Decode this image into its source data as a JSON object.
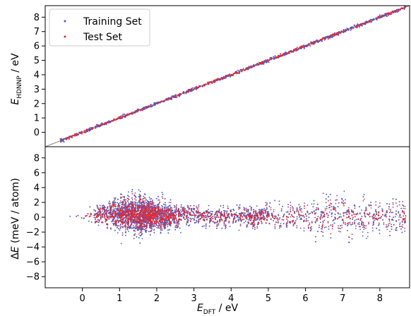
{
  "chart_data": [
    {
      "type": "scatter",
      "panel": "top",
      "xlabel": "",
      "ylabel": "E_HDNNP / eV",
      "ylabel_main": "E",
      "ylabel_sub": "HDNNP",
      "ylabel_unit": " / eV",
      "xlim": [
        -1.0,
        8.8
      ],
      "ylim": [
        -1.0,
        8.8
      ],
      "yticks": [
        0,
        1,
        2,
        3,
        4,
        5,
        6,
        7,
        8
      ],
      "grid": false,
      "legend_position": "top-left",
      "series": [
        {
          "name": "Training Set",
          "color": "#4a59c4",
          "x": [
            -0.6,
            0.0,
            1.0,
            2.0,
            3.0,
            4.0,
            5.0,
            6.0,
            7.0,
            8.0,
            8.7
          ],
          "y": [
            -0.6,
            0.0,
            1.0,
            2.0,
            3.0,
            4.0,
            5.0,
            6.0,
            7.0,
            8.0,
            8.7
          ]
        },
        {
          "name": "Test Set",
          "color": "#e8292f",
          "x": [
            -0.6,
            0.0,
            1.0,
            2.0,
            3.0,
            4.0,
            5.0,
            6.0,
            7.0,
            8.0,
            8.7
          ],
          "y": [
            -0.6,
            0.0,
            1.0,
            2.0,
            3.0,
            4.0,
            5.0,
            6.0,
            7.0,
            8.0,
            8.7
          ]
        }
      ]
    },
    {
      "type": "scatter",
      "panel": "bottom",
      "xlabel": "E_DFT / eV",
      "xlabel_main": "E",
      "xlabel_sub": "DFT",
      "xlabel_unit": " / eV",
      "ylabel": "ΔE (meV / atom)",
      "ylabel_delta": "Δ",
      "ylabel_main": "E",
      "ylabel_unit": " (meV / atom)",
      "xlim": [
        -1.0,
        8.8
      ],
      "ylim": [
        -9.5,
        9.5
      ],
      "xticks": [
        0,
        1,
        2,
        3,
        4,
        5,
        6,
        7,
        8
      ],
      "yticks": [
        -8,
        -6,
        -4,
        -2,
        0,
        2,
        4,
        6,
        8
      ],
      "grid": false,
      "series": [
        {
          "name": "Training Set",
          "color": "#4a59c4",
          "x": [
            -0.5,
            0.0,
            1.0,
            1.5,
            2.0,
            3.0,
            4.0,
            5.0,
            6.0,
            7.0,
            8.0
          ],
          "y": [
            0.0,
            0.1,
            0.5,
            0.3,
            0.2,
            0.1,
            0.0,
            0.2,
            0.0,
            0.1,
            0.0
          ],
          "spread": [
            0.1,
            0.5,
            2.5,
            3.0,
            2.2,
            1.4,
            1.6,
            1.8,
            2.5,
            3.0,
            2.8
          ]
        },
        {
          "name": "Test Set",
          "color": "#e8292f",
          "x": [
            -0.5,
            0.0,
            1.0,
            1.5,
            2.0,
            3.0,
            4.0,
            5.0,
            6.0,
            7.0,
            8.0
          ],
          "y": [
            0.0,
            0.1,
            0.4,
            0.3,
            0.2,
            0.1,
            0.0,
            0.1,
            0.0,
            0.1,
            0.0
          ],
          "spread": [
            0.1,
            0.5,
            2.2,
            2.5,
            1.8,
            1.2,
            1.3,
            1.5,
            2.0,
            2.4,
            2.2
          ]
        }
      ]
    }
  ]
}
